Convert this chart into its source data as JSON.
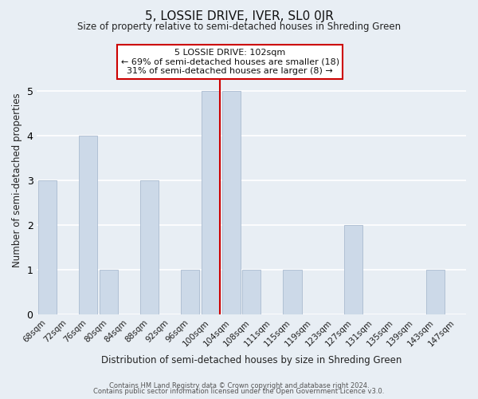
{
  "title": "5, LOSSIE DRIVE, IVER, SL0 0JR",
  "subtitle": "Size of property relative to semi-detached houses in Shreding Green",
  "xlabel": "Distribution of semi-detached houses by size in Shreding Green",
  "ylabel": "Number of semi-detached properties",
  "categories": [
    "68sqm",
    "72sqm",
    "76sqm",
    "80sqm",
    "84sqm",
    "88sqm",
    "92sqm",
    "96sqm",
    "100sqm",
    "104sqm",
    "108sqm",
    "111sqm",
    "115sqm",
    "119sqm",
    "123sqm",
    "127sqm",
    "131sqm",
    "135sqm",
    "139sqm",
    "143sqm",
    "147sqm"
  ],
  "values": [
    3,
    0,
    4,
    1,
    0,
    3,
    0,
    1,
    5,
    5,
    1,
    0,
    1,
    0,
    0,
    2,
    0,
    0,
    0,
    1,
    0
  ],
  "bar_color": "#ccd9e8",
  "bar_edge_color": "#aabbd0",
  "marker_index": 8,
  "marker_color": "#cc0000",
  "annotation_title": "5 LOSSIE DRIVE: 102sqm",
  "annotation_line1": "← 69% of semi-detached houses are smaller (18)",
  "annotation_line2": "31% of semi-detached houses are larger (8) →",
  "annotation_box_color": "#ffffff",
  "annotation_box_edge": "#cc0000",
  "footer_line1": "Contains HM Land Registry data © Crown copyright and database right 2024.",
  "footer_line2": "Contains public sector information licensed under the Open Government Licence v3.0.",
  "ylim": [
    0,
    6
  ],
  "yticks": [
    0,
    1,
    2,
    3,
    4,
    5,
    6
  ],
  "bg_color": "#e8eef4",
  "plot_bg_color": "#e8eef4",
  "grid_color": "#ffffff"
}
